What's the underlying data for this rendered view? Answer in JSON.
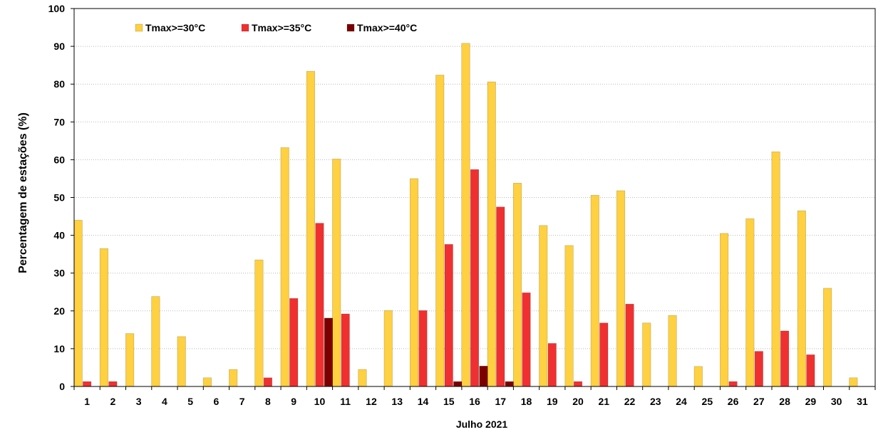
{
  "chart_data": {
    "type": "bar",
    "xlabel": "Julho 2021",
    "ylabel": "Percentagem de estações (%)",
    "ylim": [
      0,
      100
    ],
    "yticks": [
      0,
      10,
      20,
      30,
      40,
      50,
      60,
      70,
      80,
      90,
      100
    ],
    "grid": "horizontal dotted",
    "legend_position": "top-left",
    "categories": [
      "1",
      "2",
      "3",
      "4",
      "5",
      "6",
      "7",
      "8",
      "9",
      "10",
      "11",
      "12",
      "13",
      "14",
      "15",
      "16",
      "17",
      "18",
      "19",
      "20",
      "21",
      "22",
      "23",
      "24",
      "25",
      "26",
      "27",
      "28",
      "29",
      "30",
      "31"
    ],
    "series": [
      {
        "name": "Tmax>=30°C",
        "color": "#FFD040",
        "values": [
          44,
          36.5,
          14,
          23.8,
          13.2,
          2.3,
          4.5,
          33.5,
          63.2,
          83.4,
          60.2,
          4.5,
          20.1,
          55,
          82.4,
          90.8,
          80.6,
          53.8,
          42.6,
          37.3,
          50.6,
          51.8,
          16.8,
          18.8,
          5.3,
          40.5,
          44.4,
          62.1,
          46.5,
          26,
          2.3
        ]
      },
      {
        "name": "Tmax>=35°C",
        "color": "#F03030",
        "values": [
          1.3,
          1.3,
          0,
          0,
          0,
          0,
          0,
          2.3,
          23.3,
          43.2,
          19.2,
          0,
          0,
          20.1,
          37.6,
          57.4,
          47.5,
          24.8,
          11.4,
          1.3,
          16.8,
          21.8,
          0,
          0,
          0,
          1.3,
          9.3,
          14.7,
          8.4,
          0,
          0
        ]
      },
      {
        "name": "Tmax>=40°C",
        "color": "#7B0000",
        "values": [
          0,
          0,
          0,
          0,
          0,
          0,
          0,
          0,
          0,
          18.1,
          0,
          0,
          0,
          0,
          1.3,
          5.4,
          1.3,
          0,
          0,
          0,
          0,
          0,
          0,
          0,
          0,
          0,
          0,
          0,
          0,
          0,
          0
        ]
      }
    ]
  }
}
